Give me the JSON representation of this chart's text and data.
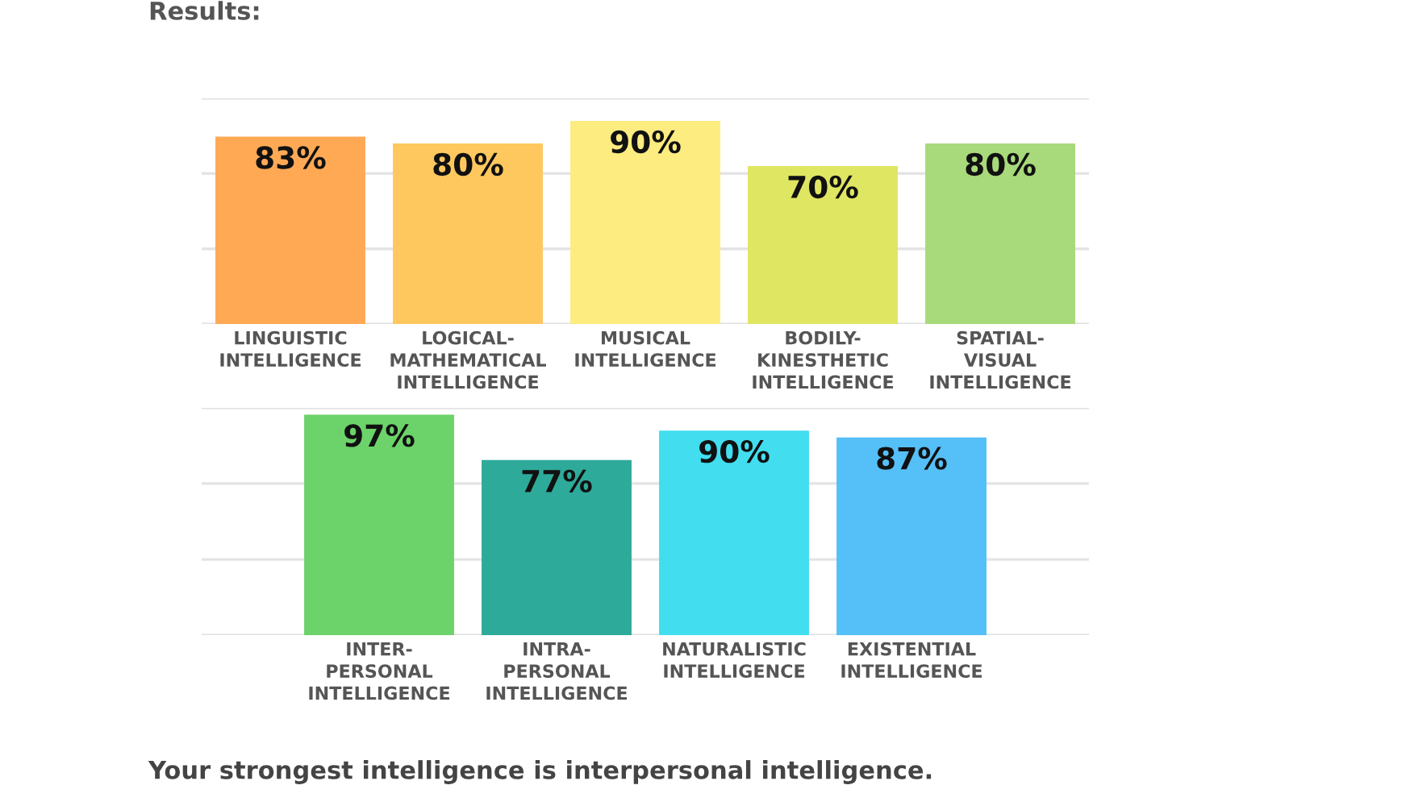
{
  "chart_data": [
    {
      "type": "bar",
      "title": "Results:",
      "categories": [
        "LINGUISTIC\nINTELLIGENCE",
        "LOGICAL-\nMATHEMATICAL\nINTELLIGENCE",
        "MUSICAL\nINTELLIGENCE",
        "BODILY-\nKINESTHETIC\nINTELLIGENCE",
        "SPATIAL-\nVISUAL\nINTELLIGENCE"
      ],
      "values": [
        83,
        80,
        90,
        70,
        80
      ],
      "value_labels": [
        "83%",
        "80%",
        "90%",
        "70%",
        "80%"
      ],
      "colors": [
        "#ffa955",
        "#fec85e",
        "#fdec80",
        "#dfe661",
        "#a8d97a"
      ],
      "ylim": [
        0,
        100
      ],
      "yticks": [
        {
          "value": 0,
          "label": null
        },
        {
          "value": 33.3,
          "label": null
        },
        {
          "value": 66.7,
          "label": null
        },
        {
          "value": 100,
          "label": null
        }
      ],
      "grid": "y",
      "tick_labels": "x"
    },
    {
      "type": "bar",
      "categories": [
        "INTER-\nPERSONAL\nINTELLIGENCE",
        "INTRA-\nPERSONAL\nINTELLIGENCE",
        "NATURALISTIC\nINTELLIGENCE",
        "EXISTENTIAL\nINTELLIGENCE"
      ],
      "values": [
        97,
        77,
        90,
        87
      ],
      "value_labels": [
        "97%",
        "77%",
        "90%",
        "87%"
      ],
      "colors": [
        "#6cd36a",
        "#2eaa9a",
        "#42def0",
        "#55bff8"
      ],
      "ylim": [
        0,
        100
      ],
      "yticks": [
        {
          "value": 0,
          "label": null
        },
        {
          "value": 33.3,
          "label": null
        },
        {
          "value": 66.7,
          "label": null
        },
        {
          "value": 100,
          "label": null
        }
      ],
      "grid": "y",
      "tick_labels": "x",
      "annotations": [
        "Your strongest intelligence is interpersonal intelligence."
      ]
    }
  ]
}
